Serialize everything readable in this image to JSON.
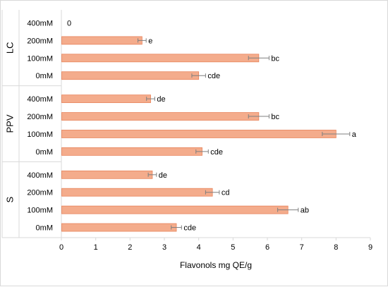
{
  "chart_data": {
    "type": "bar",
    "orientation": "horizontal",
    "xlabel": "Flavonols mg QE/g",
    "xlim": [
      0,
      9
    ],
    "xticks": [
      0,
      1,
      2,
      3,
      4,
      5,
      6,
      7,
      8,
      9
    ],
    "grid": false,
    "legend": "none",
    "colors": {
      "bar_fill": "#f4ac8c",
      "bar_stroke": "#e8845c",
      "error_bar": "#7f7f7f",
      "axis": "#d9d9d9"
    },
    "groups": [
      {
        "name": "LC",
        "bars": [
          {
            "category": "400mM",
            "value": 0,
            "error": 0,
            "label": "0"
          },
          {
            "category": "200mM",
            "value": 2.35,
            "error": 0.12,
            "label": "e"
          },
          {
            "category": "100mM",
            "value": 5.75,
            "error": 0.3,
            "label": "bc"
          },
          {
            "category": "0mM",
            "value": 4.0,
            "error": 0.2,
            "label": "cde"
          }
        ]
      },
      {
        "name": "PPV",
        "bars": [
          {
            "category": "400mM",
            "value": 2.6,
            "error": 0.12,
            "label": "de"
          },
          {
            "category": "200mM",
            "value": 5.75,
            "error": 0.3,
            "label": "bc"
          },
          {
            "category": "100mM",
            "value": 8.0,
            "error": 0.4,
            "label": "a"
          },
          {
            "category": "0mM",
            "value": 4.1,
            "error": 0.18,
            "label": "cde"
          }
        ]
      },
      {
        "name": "S",
        "bars": [
          {
            "category": "400mM",
            "value": 2.65,
            "error": 0.12,
            "label": "de"
          },
          {
            "category": "200mM",
            "value": 4.4,
            "error": 0.2,
            "label": "cd"
          },
          {
            "category": "100mM",
            "value": 6.6,
            "error": 0.3,
            "label": "ab"
          },
          {
            "category": "0mM",
            "value": 3.35,
            "error": 0.15,
            "label": "cde"
          }
        ]
      }
    ]
  }
}
